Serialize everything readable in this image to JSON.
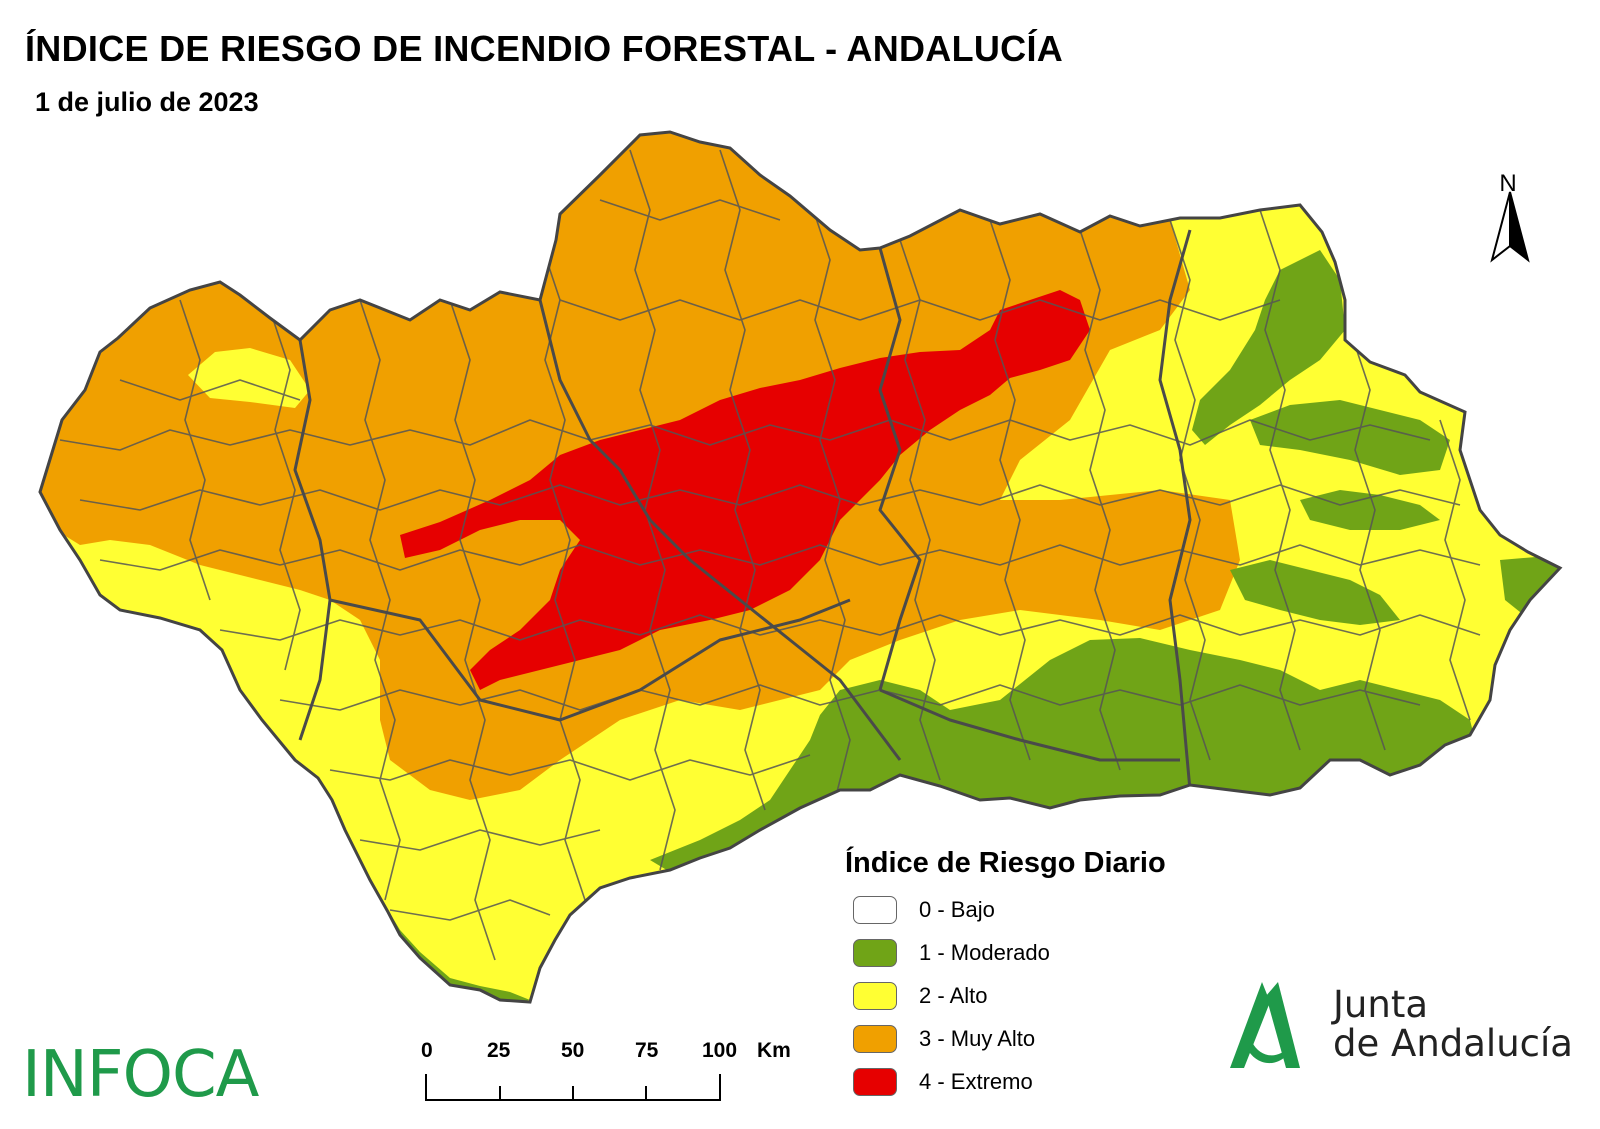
{
  "title": "ÍNDICE DE RIESGO DE INCENDIO FORESTAL - ANDALUCÍA",
  "date": "1 de julio de 2023",
  "north_label": "N",
  "legend": {
    "title": "Índice de Riesgo Diario",
    "items": [
      {
        "label": "0 - Bajo",
        "color": "#ffffff"
      },
      {
        "label": "1 - Moderado",
        "color": "#70a417"
      },
      {
        "label": "2 - Alto",
        "color": "#ffff33"
      },
      {
        "label": "3 - Muy Alto",
        "color": "#f0a000"
      },
      {
        "label": "4 - Extremo",
        "color": "#e60000"
      }
    ]
  },
  "scale": {
    "ticks": [
      "0",
      "25",
      "50",
      "75",
      "100"
    ],
    "unit": "Km"
  },
  "logos": {
    "infoca": "INFOCA",
    "junta_line1": "Junta",
    "junta_line2": "de Andalucía",
    "brand_color": "#1f9a4a"
  }
}
